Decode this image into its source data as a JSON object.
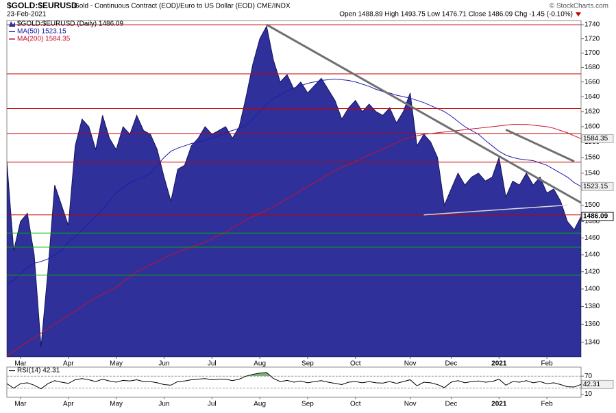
{
  "chart_data": [
    {
      "type": "area",
      "title": "$GOLD:$EURUSD",
      "subtitle": "Gold - Continuous Contract (EOD)/Euro to US Dollar (EOD) CME/INDX",
      "source": "© StockCharts.com",
      "date": "23-Feb-2021",
      "quote": "Open 1488.89 High 1493.75 Low 1476.71 Close 1486.09 Chg -1.45 (-0.10%)",
      "categories": [
        null,
        null,
        "Mar",
        null,
        null,
        null,
        null,
        null,
        null,
        "Apr",
        null,
        null,
        null,
        null,
        null,
        null,
        "May",
        null,
        null,
        null,
        null,
        null,
        null,
        "Jun",
        null,
        null,
        null,
        null,
        null,
        null,
        "Jul",
        null,
        null,
        null,
        null,
        null,
        null,
        "Aug",
        null,
        null,
        null,
        null,
        null,
        null,
        "Sep",
        null,
        null,
        null,
        null,
        null,
        null,
        "Oct",
        null,
        null,
        null,
        null,
        null,
        null,
        null,
        "Nov",
        null,
        null,
        null,
        null,
        null,
        "Dec",
        null,
        null,
        null,
        null,
        null,
        null,
        "2021",
        null,
        null,
        null,
        null,
        null,
        null,
        "Feb",
        null,
        null,
        null,
        null,
        null
      ],
      "series": [
        {
          "name": "$GOLD:$EURUSD (Daily) 1486.09",
          "type": "area",
          "color": "#30309a",
          "values": [
            1555,
            1445,
            1480,
            1490,
            1440,
            1335,
            1420,
            1525,
            1500,
            1475,
            1575,
            1610,
            1600,
            1570,
            1615,
            1585,
            1570,
            1600,
            1590,
            1615,
            1595,
            1590,
            1570,
            1535,
            1505,
            1545,
            1550,
            1575,
            1585,
            1600,
            1590,
            1595,
            1600,
            1585,
            1600,
            1640,
            1685,
            1720,
            1738,
            1690,
            1660,
            1670,
            1650,
            1660,
            1645,
            1655,
            1665,
            1650,
            1635,
            1610,
            1625,
            1635,
            1620,
            1630,
            1620,
            1615,
            1625,
            1605,
            1620,
            1645,
            1575,
            1590,
            1580,
            1560,
            1500,
            1520,
            1540,
            1525,
            1535,
            1540,
            1530,
            1535,
            1560,
            1510,
            1530,
            1525,
            1540,
            1525,
            1535,
            1515,
            1520,
            1505,
            1480,
            1470,
            1486.09
          ]
        },
        {
          "name": "MA(50) 1523.15",
          "type": "line",
          "color": "#1c1cb0",
          "values": [
            1405,
            1410,
            1418,
            1425,
            1430,
            1432,
            1435,
            1440,
            1445,
            1455,
            1462,
            1470,
            1478,
            1486,
            1495,
            1505,
            1515,
            1522,
            1528,
            1532,
            1535,
            1540,
            1550,
            1560,
            1568,
            1572,
            1575,
            1578,
            1580,
            1582,
            1585,
            1588,
            1592,
            1595,
            1598,
            1602,
            1610,
            1620,
            1630,
            1638,
            1642,
            1648,
            1652,
            1655,
            1658,
            1660,
            1662,
            1663,
            1664,
            1663,
            1662,
            1660,
            1657,
            1654,
            1650,
            1647,
            1645,
            1642,
            1640,
            1638,
            1635,
            1632,
            1628,
            1624,
            1620,
            1614,
            1607,
            1600,
            1595,
            1590,
            1582,
            1575,
            1568,
            1563,
            1560,
            1558,
            1557,
            1556,
            1553,
            1550,
            1545,
            1540,
            1535,
            1528,
            1523.15
          ]
        },
        {
          "name": "MA(200) 1584.35",
          "type": "line",
          "color": "#c8102e",
          "values": [
            1325,
            1330,
            1335,
            1340,
            1345,
            1350,
            1355,
            1360,
            1365,
            1370,
            1375,
            1380,
            1385,
            1390,
            1394,
            1398,
            1402,
            1408,
            1414,
            1420,
            1424,
            1428,
            1432,
            1436,
            1440,
            1443,
            1446,
            1449,
            1452,
            1455,
            1459,
            1463,
            1467,
            1472,
            1477,
            1482,
            1486,
            1490,
            1494,
            1498,
            1503,
            1508,
            1513,
            1518,
            1523,
            1528,
            1533,
            1538,
            1543,
            1547,
            1551,
            1555,
            1559,
            1563,
            1567,
            1571,
            1575,
            1579,
            1583,
            1586,
            1588,
            1590,
            1591,
            1592,
            1593,
            1594,
            1595,
            1596,
            1597,
            1598,
            1599,
            1600,
            1601,
            1602,
            1603,
            1603,
            1603,
            1602,
            1601,
            1600,
            1598,
            1595,
            1592,
            1588,
            1584.35
          ]
        }
      ],
      "log": true,
      "ylim": [
        1324,
        1746
      ],
      "yticks": [
        1340,
        1360,
        1380,
        1400,
        1420,
        1440,
        1460,
        1480,
        1500,
        1520,
        1540,
        1560,
        1580,
        1600,
        1620,
        1640,
        1660,
        1680,
        1700,
        1720,
        1740
      ],
      "hlines": [
        {
          "value": 1740,
          "color": "#c80000"
        },
        {
          "value": 1671,
          "color": "#c80000"
        },
        {
          "value": 1624,
          "color": "#c80000"
        },
        {
          "value": 1591,
          "color": "#c80000"
        },
        {
          "value": 1554,
          "color": "#c80000"
        },
        {
          "value": 1488,
          "color": "#c80000"
        },
        {
          "value": 1466,
          "color": "#00b400"
        },
        {
          "value": 1449,
          "color": "#00b400"
        },
        {
          "value": 1416,
          "color": "#00b400"
        }
      ],
      "trendlines": [
        {
          "start": [
            38,
            1740
          ],
          "end": [
            84,
            1503
          ],
          "color": "#707070"
        },
        {
          "start": [
            73,
            1596
          ],
          "end": [
            83,
            1555
          ],
          "color": "#707070"
        },
        {
          "start": [
            61,
            1488
          ],
          "end": [
            82,
            1500
          ],
          "color": "#d8d8d8"
        }
      ]
    },
    {
      "type": "line",
      "categories": [
        null,
        null,
        "Mar",
        null,
        null,
        null,
        null,
        null,
        null,
        "Apr",
        null,
        null,
        null,
        null,
        null,
        null,
        "May",
        null,
        null,
        null,
        null,
        null,
        null,
        "Jun",
        null,
        null,
        null,
        null,
        null,
        null,
        "Jul",
        null,
        null,
        null,
        null,
        null,
        null,
        "Aug",
        null,
        null,
        null,
        null,
        null,
        null,
        "Sep",
        null,
        null,
        null,
        null,
        null,
        null,
        "Oct",
        null,
        null,
        null,
        null,
        null,
        null,
        null,
        "Nov",
        null,
        null,
        null,
        null,
        null,
        "Dec",
        null,
        null,
        null,
        null,
        null,
        null,
        "2021",
        null,
        null,
        null,
        null,
        null,
        null,
        "Feb",
        null,
        null,
        null,
        null,
        null
      ],
      "series": [
        {
          "name": "RSI(14) 42.31",
          "color": "#000000",
          "values": [
            45,
            30,
            45,
            48,
            40,
            28,
            45,
            55,
            50,
            46,
            58,
            62,
            58,
            52,
            60,
            54,
            50,
            56,
            54,
            58,
            52,
            52,
            48,
            42,
            40,
            52,
            54,
            58,
            60,
            62,
            58,
            60,
            60,
            55,
            60,
            70,
            76,
            80,
            82,
            62,
            52,
            56,
            50,
            54,
            48,
            52,
            55,
            50,
            46,
            42,
            50,
            52,
            48,
            52,
            48,
            47,
            52,
            46,
            52,
            58,
            38,
            50,
            48,
            42,
            32,
            50,
            55,
            48,
            52,
            54,
            50,
            52,
            60,
            40,
            52,
            50,
            55,
            48,
            52,
            45,
            48,
            42,
            35,
            34,
            42.31
          ]
        }
      ],
      "ylim": [
        0,
        100
      ],
      "yticks": [
        10,
        70
      ],
      "levels": [
        30,
        70
      ],
      "level_fill": "#7fae7f"
    }
  ]
}
